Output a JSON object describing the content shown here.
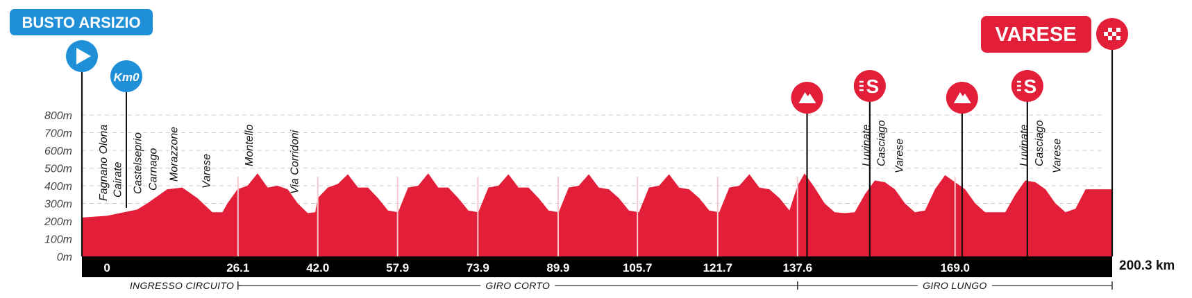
{
  "start": {
    "name": "BUSTO ARSIZIO",
    "km0_label": "Km0"
  },
  "finish": {
    "name": "VARESE"
  },
  "colors": {
    "profile": "#e31e38",
    "start_blue": "#1f8fd8",
    "axis_bar": "#000000",
    "grid": "#cccccc"
  },
  "chart_data": {
    "type": "area",
    "title": "",
    "xlabel": "",
    "ylabel": "",
    "y_unit": "m",
    "yticks": [
      "800m",
      "700m",
      "600m",
      "500m",
      "400m",
      "300m",
      "200m",
      "100m",
      "0m"
    ],
    "ylim": [
      0,
      800
    ],
    "xlim": [
      -5,
      200.3
    ],
    "total_distance": "200.3 km",
    "km_markers": [
      "0",
      "26.1",
      "42.0",
      "57.9",
      "73.9",
      "89.9",
      "105.7",
      "121.7",
      "137.6",
      "169.0"
    ],
    "profile": {
      "x": [
        -5,
        0,
        6,
        8,
        12,
        15,
        18,
        21,
        23,
        24,
        26,
        28,
        30,
        32,
        34,
        36,
        38,
        40,
        41.5,
        42,
        44,
        46,
        48,
        50,
        52,
        54,
        56,
        58,
        60,
        62,
        64,
        66,
        68,
        70,
        72,
        74,
        76,
        78,
        80,
        82,
        84,
        86,
        88,
        90,
        92,
        94,
        96,
        98,
        100,
        102,
        104,
        106,
        108,
        110,
        112,
        114,
        116,
        118,
        120,
        122,
        124,
        126,
        128,
        130,
        132,
        134,
        136,
        137.6,
        139,
        141,
        143,
        145,
        147,
        149,
        151,
        153,
        155,
        157,
        159,
        161,
        163,
        165,
        167,
        169,
        171,
        173,
        175,
        177,
        179,
        181,
        183,
        185,
        187,
        189,
        191,
        193,
        195,
        197,
        199,
        200.3
      ],
      "y": [
        220,
        230,
        265,
        300,
        380,
        390,
        330,
        250,
        250,
        300,
        380,
        400,
        470,
        390,
        400,
        380,
        300,
        245,
        250,
        330,
        390,
        410,
        465,
        390,
        390,
        330,
        260,
        250,
        390,
        400,
        470,
        390,
        390,
        330,
        260,
        250,
        390,
        400,
        465,
        390,
        390,
        330,
        260,
        250,
        390,
        400,
        465,
        390,
        380,
        330,
        260,
        250,
        390,
        400,
        465,
        390,
        380,
        330,
        260,
        250,
        390,
        400,
        465,
        390,
        380,
        330,
        260,
        400,
        470,
        390,
        300,
        250,
        245,
        250,
        350,
        430,
        420,
        380,
        300,
        250,
        260,
        380,
        460,
        420,
        380,
        300,
        250,
        250,
        250,
        350,
        430,
        420,
        380,
        300,
        250,
        270,
        380,
        380,
        380,
        380
      ]
    },
    "ticks_light": [
      26.1,
      42.0,
      57.9,
      73.9,
      89.9,
      105.7,
      121.7,
      137.6,
      169.0
    ],
    "towns": [
      {
        "name": "Fagnano Olona",
        "km": 0
      },
      {
        "name": "Cairate",
        "km": 2.8
      },
      {
        "name": "Castelseprio",
        "km": 6.8
      },
      {
        "name": "Carnago",
        "km": 9.9
      },
      {
        "name": "Morazzone",
        "km": 14.0
      },
      {
        "name": "Varese",
        "km": 20.5
      },
      {
        "name": "Montello",
        "km": 29.0
      },
      {
        "name": "Via Corridoni",
        "km": 38.1
      },
      {
        "name": "Luvinate",
        "km": 152.0
      },
      {
        "name": "Casciago",
        "km": 155.0
      },
      {
        "name": "Varese",
        "km": 158.6
      },
      {
        "name": "Luvinate",
        "km": 183.4
      },
      {
        "name": "Casciago",
        "km": 186.5
      },
      {
        "name": "Varese",
        "km": 190.0
      }
    ],
    "kom_badges": [
      139.5,
      170.4
    ],
    "sprint_badges": [
      152.0,
      183.4
    ],
    "segments": [
      {
        "label": "INGRESSO CIRCUITO",
        "from": -5,
        "to": 26.1
      },
      {
        "label": "GIRO CORTO",
        "from": 26.1,
        "to": 137.6
      },
      {
        "label": "GIRO LUNGO",
        "from": 137.6,
        "to": 200.3
      }
    ]
  }
}
